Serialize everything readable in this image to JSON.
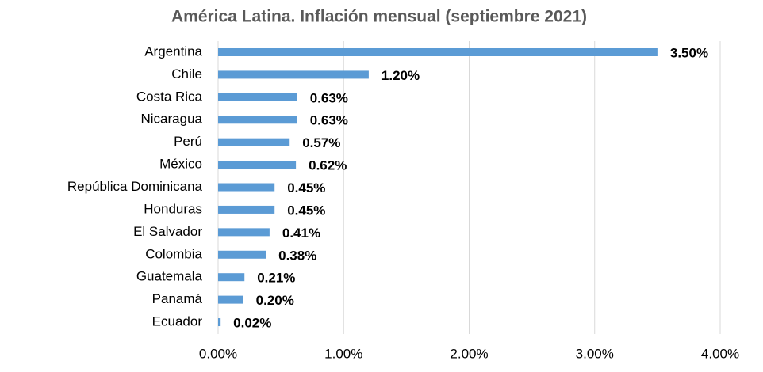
{
  "chart_data": {
    "type": "barh",
    "title": "América Latina. Inflación mensual (septiembre 2021)",
    "categories": [
      "Argentina",
      "Chile",
      "Costa Rica",
      "Nicaragua",
      "Perú",
      "México",
      "República Dominicana",
      "Honduras",
      "El Salvador",
      "Colombia",
      "Guatemala",
      "Panamá",
      "Ecuador"
    ],
    "values": [
      3.5,
      1.2,
      0.63,
      0.63,
      0.57,
      0.62,
      0.45,
      0.45,
      0.41,
      0.38,
      0.21,
      0.2,
      0.02
    ],
    "value_labels": [
      "3.50%",
      "1.20%",
      "0.63%",
      "0.63%",
      "0.57%",
      "0.62%",
      "0.45%",
      "0.45%",
      "0.41%",
      "0.38%",
      "0.21%",
      "0.20%",
      "0.02%"
    ],
    "color": "#5b9bd5",
    "xlim": [
      0,
      4
    ],
    "xticks": [
      {
        "value": 0,
        "label": "0.00%"
      },
      {
        "value": 1,
        "label": "1.00%"
      },
      {
        "value": 2,
        "label": "2.00%"
      },
      {
        "value": 3,
        "label": "3.00%"
      },
      {
        "value": 4,
        "label": "4.00%"
      }
    ],
    "grid": true
  }
}
